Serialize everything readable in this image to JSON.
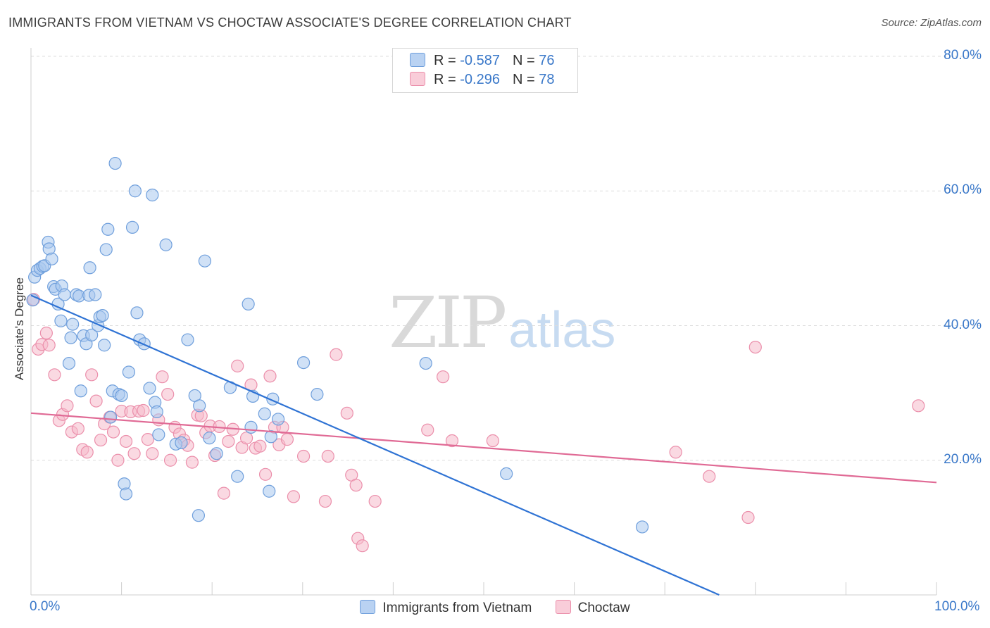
{
  "header": {
    "title": "IMMIGRANTS FROM VIETNAM VS CHOCTAW ASSOCIATE'S DEGREE CORRELATION CHART",
    "source": "Source: ZipAtlas.com"
  },
  "watermark": {
    "zip": "ZIP",
    "atlas": "atlas"
  },
  "legend_top": [
    {
      "r_label": "R = ",
      "r_value": "-0.587",
      "n_label": "N = ",
      "n_value": "76"
    },
    {
      "r_label": "R = ",
      "r_value": "-0.296",
      "n_label": "N = ",
      "n_value": "78"
    }
  ],
  "colors": {
    "vietnam_fill": "#a9c8ef",
    "vietnam_stroke": "#6f9fdc",
    "vietnam_line": "#2f73d4",
    "choctaw_fill": "#f6b9cb",
    "choctaw_stroke": "#eb8fab",
    "choctaw_line": "#e06a95",
    "axis_label": "#3a78c9",
    "grid": "#dddddd"
  },
  "chart_data": {
    "type": "scatter",
    "title": "IMMIGRANTS FROM VIETNAM VS CHOCTAW ASSOCIATE'S DEGREE CORRELATION CHART",
    "xlabel": "",
    "ylabel": "Associate's Degree",
    "xlim": [
      0,
      100
    ],
    "ylim": [
      0,
      80
    ],
    "x_tick_labels": [
      "0.0%",
      "100.0%"
    ],
    "y_ticks": [
      20,
      40,
      60,
      80
    ],
    "y_tick_labels": [
      "20.0%",
      "40.0%",
      "60.0%",
      "80.0%"
    ],
    "grid": true,
    "legend_placement": "bottom",
    "series": [
      {
        "name": "Immigrants from Vietnam",
        "r": -0.587,
        "n": 76,
        "trend": {
          "x": [
            0,
            76
          ],
          "y": [
            44.5,
            0
          ]
        },
        "points": [
          [
            0.2,
            43.8
          ],
          [
            0.4,
            47.2
          ],
          [
            0.7,
            48.2
          ],
          [
            1.0,
            48.5
          ],
          [
            1.3,
            48.8
          ],
          [
            1.5,
            48.9
          ],
          [
            1.9,
            52.4
          ],
          [
            2.0,
            51.4
          ],
          [
            2.3,
            49.9
          ],
          [
            2.5,
            45.8
          ],
          [
            2.7,
            45.4
          ],
          [
            3.0,
            43.2
          ],
          [
            3.3,
            40.7
          ],
          [
            3.4,
            45.9
          ],
          [
            3.7,
            44.6
          ],
          [
            4.2,
            34.4
          ],
          [
            4.4,
            38.2
          ],
          [
            4.6,
            40.2
          ],
          [
            5.0,
            44.6
          ],
          [
            5.3,
            44.4
          ],
          [
            5.5,
            30.3
          ],
          [
            5.8,
            38.5
          ],
          [
            6.1,
            37.3
          ],
          [
            6.4,
            44.5
          ],
          [
            6.5,
            48.6
          ],
          [
            6.7,
            38.6
          ],
          [
            7.1,
            44.6
          ],
          [
            7.4,
            40.0
          ],
          [
            7.6,
            41.3
          ],
          [
            7.9,
            41.5
          ],
          [
            8.1,
            37.1
          ],
          [
            8.3,
            51.3
          ],
          [
            8.5,
            54.3
          ],
          [
            8.8,
            26.4
          ],
          [
            9.0,
            30.3
          ],
          [
            9.3,
            64.1
          ],
          [
            9.7,
            29.8
          ],
          [
            10.0,
            29.6
          ],
          [
            10.3,
            16.5
          ],
          [
            10.5,
            15.0
          ],
          [
            10.8,
            33.1
          ],
          [
            11.2,
            54.6
          ],
          [
            11.5,
            60.0
          ],
          [
            11.7,
            41.9
          ],
          [
            12.0,
            37.9
          ],
          [
            12.5,
            37.3
          ],
          [
            13.1,
            30.7
          ],
          [
            13.4,
            59.4
          ],
          [
            13.7,
            28.6
          ],
          [
            13.9,
            27.2
          ],
          [
            14.1,
            23.8
          ],
          [
            14.9,
            52.0
          ],
          [
            16.0,
            22.4
          ],
          [
            16.6,
            22.6
          ],
          [
            17.3,
            37.9
          ],
          [
            18.1,
            29.6
          ],
          [
            18.5,
            11.8
          ],
          [
            18.6,
            28.1
          ],
          [
            19.2,
            49.6
          ],
          [
            19.7,
            23.3
          ],
          [
            20.5,
            21.0
          ],
          [
            22.0,
            30.8
          ],
          [
            22.8,
            17.6
          ],
          [
            24.0,
            43.2
          ],
          [
            24.3,
            24.9
          ],
          [
            24.5,
            29.5
          ],
          [
            25.8,
            26.9
          ],
          [
            26.3,
            15.4
          ],
          [
            26.5,
            23.5
          ],
          [
            26.7,
            29.1
          ],
          [
            27.3,
            26.1
          ],
          [
            30.1,
            34.5
          ],
          [
            31.6,
            29.8
          ],
          [
            43.6,
            34.4
          ],
          [
            52.5,
            18.0
          ],
          [
            67.5,
            10.1
          ]
        ]
      },
      {
        "name": "Choctaw",
        "r": -0.296,
        "n": 78,
        "trend": {
          "x": [
            0,
            100
          ],
          "y": [
            27.0,
            16.7
          ]
        },
        "points": [
          [
            0.3,
            43.9
          ],
          [
            0.8,
            36.5
          ],
          [
            1.2,
            37.2
          ],
          [
            1.7,
            38.9
          ],
          [
            2.0,
            37.1
          ],
          [
            2.6,
            32.7
          ],
          [
            3.1,
            25.9
          ],
          [
            3.5,
            26.8
          ],
          [
            4.0,
            28.1
          ],
          [
            4.5,
            24.2
          ],
          [
            5.2,
            24.7
          ],
          [
            5.7,
            21.6
          ],
          [
            6.2,
            21.2
          ],
          [
            6.7,
            32.7
          ],
          [
            7.2,
            28.8
          ],
          [
            7.7,
            23.0
          ],
          [
            8.1,
            25.4
          ],
          [
            8.7,
            26.4
          ],
          [
            9.1,
            24.2
          ],
          [
            9.6,
            20.0
          ],
          [
            10.0,
            27.3
          ],
          [
            10.5,
            22.8
          ],
          [
            11.0,
            27.2
          ],
          [
            11.4,
            21.0
          ],
          [
            11.9,
            27.3
          ],
          [
            12.4,
            27.4
          ],
          [
            12.9,
            23.1
          ],
          [
            13.4,
            21.0
          ],
          [
            14.1,
            26.0
          ],
          [
            14.5,
            32.4
          ],
          [
            15.1,
            29.8
          ],
          [
            15.4,
            20.0
          ],
          [
            15.9,
            24.9
          ],
          [
            16.4,
            23.9
          ],
          [
            16.9,
            23.0
          ],
          [
            17.3,
            22.2
          ],
          [
            17.8,
            19.7
          ],
          [
            18.4,
            26.7
          ],
          [
            18.8,
            26.6
          ],
          [
            19.3,
            24.1
          ],
          [
            19.8,
            25.1
          ],
          [
            20.3,
            20.7
          ],
          [
            20.8,
            25.0
          ],
          [
            21.3,
            15.1
          ],
          [
            21.8,
            22.8
          ],
          [
            22.3,
            24.6
          ],
          [
            22.8,
            34.0
          ],
          [
            23.3,
            21.9
          ],
          [
            23.8,
            23.3
          ],
          [
            24.3,
            31.2
          ],
          [
            24.8,
            21.8
          ],
          [
            25.3,
            22.1
          ],
          [
            25.9,
            17.9
          ],
          [
            26.4,
            32.5
          ],
          [
            26.9,
            24.9
          ],
          [
            27.4,
            22.3
          ],
          [
            27.8,
            24.9
          ],
          [
            28.3,
            23.1
          ],
          [
            29.0,
            14.6
          ],
          [
            30.1,
            20.6
          ],
          [
            32.5,
            13.9
          ],
          [
            32.8,
            20.6
          ],
          [
            33.7,
            35.7
          ],
          [
            34.9,
            27.0
          ],
          [
            35.4,
            17.8
          ],
          [
            35.9,
            16.3
          ],
          [
            36.1,
            8.4
          ],
          [
            36.6,
            7.3
          ],
          [
            38.0,
            13.9
          ],
          [
            43.8,
            24.5
          ],
          [
            45.5,
            32.4
          ],
          [
            46.5,
            22.9
          ],
          [
            51.0,
            22.9
          ],
          [
            71.2,
            21.2
          ],
          [
            74.9,
            17.6
          ],
          [
            79.2,
            11.5
          ],
          [
            80.0,
            36.8
          ],
          [
            98.0,
            28.1
          ]
        ]
      }
    ]
  }
}
